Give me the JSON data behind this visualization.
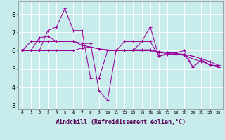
{
  "background_color": "#c8ecec",
  "line_color": "#990099",
  "grid_color": "#ffffff",
  "xlabel": "Windchill (Refroidissement éolien,°C)",
  "ylim": [
    2.8,
    8.7
  ],
  "xlim": [
    -0.5,
    23.5
  ],
  "yticks": [
    3,
    4,
    5,
    6,
    7,
    8
  ],
  "xticks": [
    0,
    1,
    2,
    3,
    4,
    5,
    6,
    7,
    8,
    9,
    10,
    11,
    12,
    13,
    14,
    15,
    16,
    17,
    18,
    19,
    20,
    21,
    22,
    23
  ],
  "series": [
    [
      6.0,
      6.0,
      6.0,
      7.1,
      7.3,
      8.3,
      7.1,
      7.1,
      4.5,
      4.5,
      6.0,
      6.0,
      6.5,
      6.5,
      6.5,
      7.3,
      5.7,
      5.85,
      5.9,
      6.0,
      5.1,
      5.5,
      5.2,
      5.1
    ],
    [
      6.0,
      6.5,
      6.5,
      6.5,
      6.5,
      6.5,
      6.5,
      6.4,
      6.4,
      3.8,
      3.3,
      6.0,
      6.0,
      6.0,
      6.5,
      6.5,
      5.7,
      5.8,
      5.8,
      5.8,
      5.1,
      5.5,
      5.2,
      5.2
    ],
    [
      6.0,
      6.0,
      6.0,
      6.0,
      6.0,
      6.0,
      6.0,
      6.15,
      6.2,
      6.1,
      6.05,
      6.0,
      6.0,
      6.05,
      6.05,
      6.05,
      5.95,
      5.9,
      5.85,
      5.8,
      5.7,
      5.55,
      5.4,
      5.2
    ],
    [
      6.0,
      6.0,
      6.7,
      6.8,
      6.5,
      6.5,
      6.5,
      6.3,
      6.2,
      6.1,
      6.0,
      6.0,
      6.0,
      6.0,
      6.0,
      6.0,
      5.9,
      5.85,
      5.8,
      5.75,
      5.55,
      5.4,
      5.25,
      5.1
    ]
  ]
}
